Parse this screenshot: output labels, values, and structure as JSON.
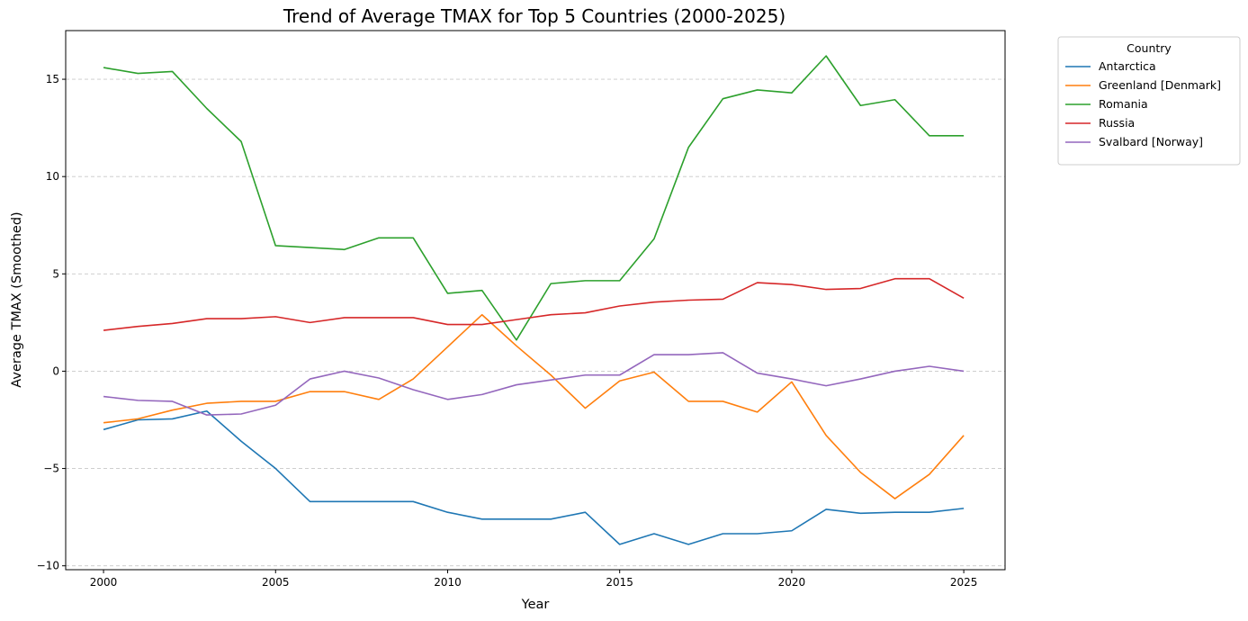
{
  "chart_data": {
    "type": "line",
    "title": "Trend of Average TMAX for Top 5 Countries (2000-2025)",
    "xlabel": "Year",
    "ylabel": "Average TMAX (Smoothed)",
    "xlim": [
      1998.9,
      2026.2
    ],
    "ylim": [
      -10.2,
      17.5
    ],
    "xticks": [
      2000,
      2005,
      2010,
      2015,
      2020,
      2025
    ],
    "yticks": [
      -10,
      -5,
      0,
      5,
      10,
      15
    ],
    "ytick_labels": [
      "−10",
      "−5",
      "0",
      "5",
      "10",
      "15"
    ],
    "grid": "y-dashed",
    "legend": {
      "title": "Country",
      "placement": "outside-top-right"
    },
    "x": [
      2000,
      2001,
      2002,
      2003,
      2004,
      2005,
      2006,
      2007,
      2008,
      2009,
      2010,
      2011,
      2012,
      2013,
      2014,
      2015,
      2016,
      2017,
      2018,
      2019,
      2020,
      2021,
      2022,
      2023,
      2024,
      2025
    ],
    "series": [
      {
        "name": "Antarctica",
        "color": "#1f77b4",
        "values": [
          -3.0,
          -2.5,
          -2.45,
          -2.05,
          -3.6,
          -5.0,
          -6.7,
          -6.7,
          -6.7,
          -6.7,
          -7.25,
          -7.6,
          -7.6,
          -7.6,
          -7.25,
          -8.9,
          -8.35,
          -8.9,
          -8.35,
          -8.35,
          -8.2,
          -7.1,
          -7.3,
          -7.25,
          -7.25,
          -7.05
        ]
      },
      {
        "name": "Greenland [Denmark]",
        "color": "#ff7f0e",
        "values": [
          -2.65,
          -2.45,
          -2.0,
          -1.65,
          -1.55,
          -1.55,
          -1.05,
          -1.05,
          -1.45,
          -0.4,
          1.25,
          2.9,
          1.3,
          -0.2,
          -1.9,
          -0.5,
          -0.05,
          -1.55,
          -1.55,
          -2.1,
          -0.55,
          -3.3,
          -5.2,
          -6.55,
          -5.3,
          -3.3
        ]
      },
      {
        "name": "Romania",
        "color": "#2ca02c",
        "values": [
          15.6,
          15.3,
          15.4,
          13.5,
          11.8,
          6.45,
          6.35,
          6.25,
          6.85,
          6.85,
          4.0,
          4.15,
          1.6,
          4.5,
          4.65,
          4.65,
          6.8,
          11.5,
          14.0,
          14.45,
          14.3,
          16.2,
          13.65,
          13.95,
          12.1,
          12.1
        ]
      },
      {
        "name": "Russia",
        "color": "#d62728",
        "values": [
          2.1,
          2.3,
          2.45,
          2.7,
          2.7,
          2.8,
          2.5,
          2.75,
          2.75,
          2.75,
          2.4,
          2.4,
          2.65,
          2.9,
          3.0,
          3.35,
          3.55,
          3.65,
          3.7,
          4.55,
          4.45,
          4.2,
          4.25,
          4.75,
          4.75,
          3.75
        ]
      },
      {
        "name": "Svalbard [Norway]",
        "color": "#9467bd",
        "values": [
          -1.3,
          -1.5,
          -1.55,
          -2.25,
          -2.2,
          -1.75,
          -0.4,
          0.0,
          -0.35,
          -0.95,
          -1.45,
          -1.2,
          -0.7,
          -0.45,
          -0.2,
          -0.2,
          0.85,
          0.85,
          0.95,
          -0.1,
          -0.4,
          -0.75,
          -0.4,
          0.0,
          0.25,
          0.0
        ]
      }
    ]
  }
}
